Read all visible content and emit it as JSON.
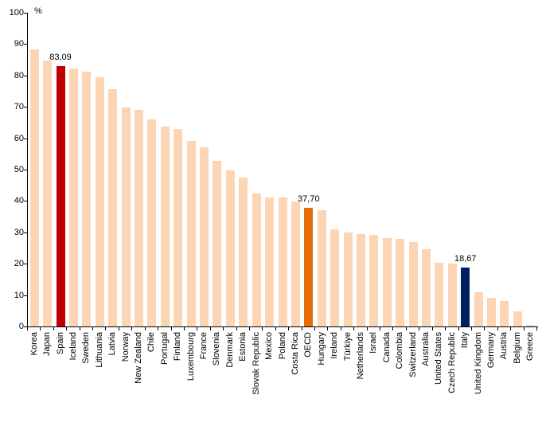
{
  "chart_data": {
    "type": "bar",
    "title": "",
    "unit_label": "%",
    "xlabel": "",
    "ylabel": "%",
    "ylim": [
      0,
      100
    ],
    "yticks": [
      0,
      10,
      20,
      30,
      40,
      50,
      60,
      70,
      80,
      90,
      100
    ],
    "grid": false,
    "legend": "none",
    "categories": [
      "Korea",
      "Japan",
      "Spain",
      "Iceland",
      "Sweden",
      "Lithuania",
      "Latvia",
      "Norway",
      "New Zealand",
      "Chile",
      "Portugal",
      "Finland",
      "Luxembourg",
      "France",
      "Slovenia",
      "Denmark",
      "Estonia",
      "Slovak Republic",
      "Mexico",
      "Poland",
      "Costa Rica",
      "OECD",
      "Hungary",
      "Ireland",
      "Türkiye",
      "Netherlands",
      "Israel",
      "Canada",
      "Colombia",
      "Switzerland",
      "Australia",
      "United States",
      "Czech Republic",
      "Italy",
      "United Kingdom",
      "Germany",
      "Austria",
      "Belgium",
      "Greece"
    ],
    "values": [
      88.2,
      84.8,
      83.09,
      82.2,
      81.3,
      79.4,
      75.7,
      69.8,
      69.0,
      66.0,
      63.7,
      63.0,
      59.2,
      57.1,
      52.9,
      49.7,
      47.4,
      42.3,
      41.2,
      41.0,
      39.8,
      37.7,
      37.0,
      30.9,
      29.9,
      29.4,
      29.1,
      28.1,
      27.9,
      27.0,
      24.6,
      20.3,
      20.1,
      18.67,
      10.9,
      9.1,
      8.1,
      4.8,
      0.6
    ],
    "highlighted": [
      {
        "category": "Spain",
        "value_label": "83,09",
        "color": "#C00000"
      },
      {
        "category": "OECD",
        "value_label": "37,70",
        "color": "#E36C0A"
      },
      {
        "category": "Italy",
        "value_label": "18,67",
        "color": "#002060"
      }
    ],
    "colors": {
      "default_bar": "#FCD5B4",
      "axis": "#000000",
      "text": "#000000",
      "background": "#FFFFFF"
    }
  }
}
